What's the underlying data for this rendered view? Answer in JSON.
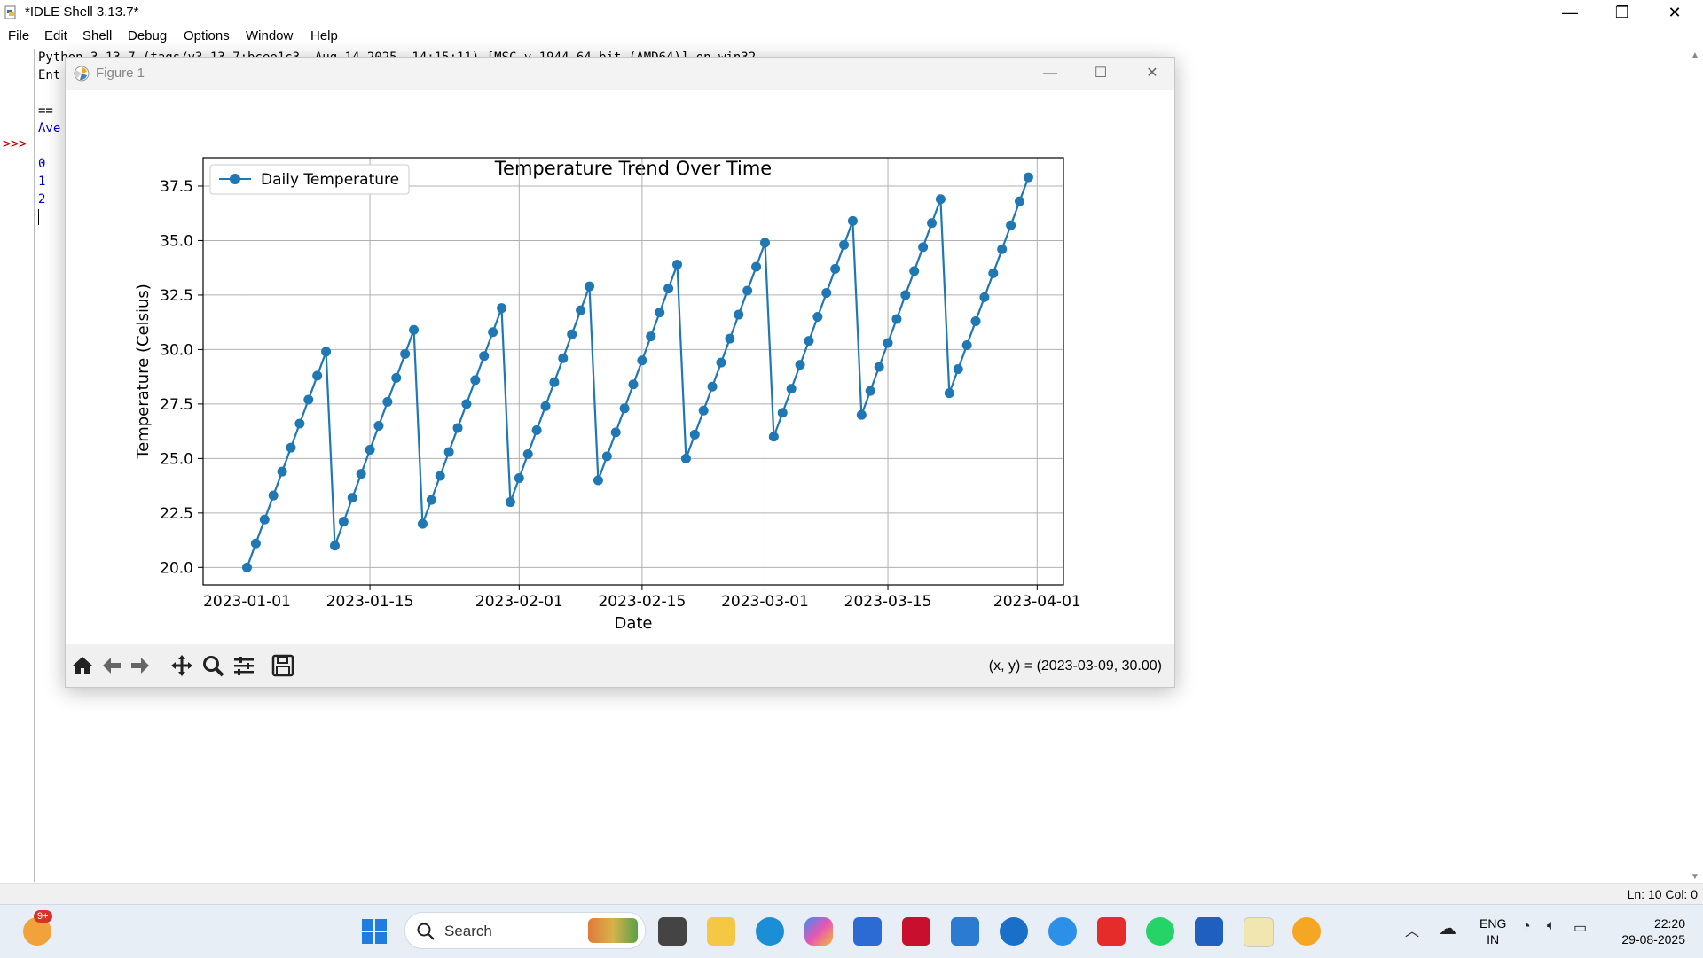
{
  "app": {
    "title": "*IDLE Shell 3.13.7*",
    "controls": {
      "minimize": "—",
      "restore": "❐",
      "close": "✕"
    },
    "menu": [
      "File",
      "Edit",
      "Shell",
      "Debug",
      "Options",
      "Window",
      "Help"
    ],
    "prompt": ">>>",
    "shell_lines": [
      {
        "text": "Python 3.13.7 (tags/v3.13.7:bcee1c3, Aug 14 2025, 14:15:11) [MSC v.1944 64 bit (AMD64)] on win32",
        "color": "#000000"
      },
      {
        "text": "Ent",
        "color": "#000000"
      },
      {
        "text": "",
        "color": "#000000"
      },
      {
        "text": "==",
        "color": "#000000"
      },
      {
        "text": "Ave",
        "color": "#0000cc"
      },
      {
        "text": "",
        "color": "#000000"
      },
      {
        "text": "0",
        "color": "#0000cc"
      },
      {
        "text": "1",
        "color": "#0000cc"
      },
      {
        "text": "2",
        "color": "#0000cc"
      }
    ],
    "status": "Ln: 10   Col: 0"
  },
  "figure": {
    "window_title": "Figure 1",
    "coords_readout": "(x, y) = (2023-03-09, 30.00)",
    "toolbar_icons": [
      "home-icon",
      "back-arrow-icon",
      "forward-arrow-icon",
      "pan-icon",
      "zoom-icon",
      "configure-subplots-icon",
      "save-icon"
    ]
  },
  "chart_data": {
    "type": "line",
    "title": "Temperature Trend Over Time",
    "xlabel": "Date",
    "ylabel": "Temperature (Celsius)",
    "x_start": "2023-01-01",
    "x_ticks": [
      "2023-01-01",
      "2023-01-15",
      "2023-02-01",
      "2023-02-15",
      "2023-03-01",
      "2023-03-15",
      "2023-04-01"
    ],
    "y_ticks": [
      "20.0",
      "22.5",
      "25.0",
      "27.5",
      "30.0",
      "32.5",
      "35.0",
      "37.5"
    ],
    "ylim": [
      19.2,
      38.8
    ],
    "xlim": [
      "2022-12-27",
      "2023-04-04"
    ],
    "grid": true,
    "legend_position": "top-left",
    "series": [
      {
        "name": "Daily Temperature",
        "color": "#1f77b4",
        "marker": "circle",
        "x": [
          "2023-01-01",
          "2023-01-02",
          "2023-01-03",
          "2023-01-04",
          "2023-01-05",
          "2023-01-06",
          "2023-01-07",
          "2023-01-08",
          "2023-01-09",
          "2023-01-10",
          "2023-01-11",
          "2023-01-12",
          "2023-01-13",
          "2023-01-14",
          "2023-01-15",
          "2023-01-16",
          "2023-01-17",
          "2023-01-18",
          "2023-01-19",
          "2023-01-20",
          "2023-01-21",
          "2023-01-22",
          "2023-01-23",
          "2023-01-24",
          "2023-01-25",
          "2023-01-26",
          "2023-01-27",
          "2023-01-28",
          "2023-01-29",
          "2023-01-30",
          "2023-01-31",
          "2023-02-01",
          "2023-02-02",
          "2023-02-03",
          "2023-02-04",
          "2023-02-05",
          "2023-02-06",
          "2023-02-07",
          "2023-02-08",
          "2023-02-09",
          "2023-02-10",
          "2023-02-11",
          "2023-02-12",
          "2023-02-13",
          "2023-02-14",
          "2023-02-15",
          "2023-02-16",
          "2023-02-17",
          "2023-02-18",
          "2023-02-19",
          "2023-02-20",
          "2023-02-21",
          "2023-02-22",
          "2023-02-23",
          "2023-02-24",
          "2023-02-25",
          "2023-02-26",
          "2023-02-27",
          "2023-02-28",
          "2023-03-01",
          "2023-03-02",
          "2023-03-03",
          "2023-03-04",
          "2023-03-05",
          "2023-03-06",
          "2023-03-07",
          "2023-03-08",
          "2023-03-09",
          "2023-03-10",
          "2023-03-11",
          "2023-03-12",
          "2023-03-13",
          "2023-03-14",
          "2023-03-15",
          "2023-03-16",
          "2023-03-17",
          "2023-03-18",
          "2023-03-19",
          "2023-03-20",
          "2023-03-21",
          "2023-03-22",
          "2023-03-23",
          "2023-03-24",
          "2023-03-25",
          "2023-03-26",
          "2023-03-27",
          "2023-03-28",
          "2023-03-29",
          "2023-03-30",
          "2023-03-31"
        ],
        "y": [
          20.0,
          21.1,
          22.2,
          23.3,
          24.4,
          25.5,
          26.6,
          27.7,
          28.8,
          29.9,
          21.0,
          22.1,
          23.2,
          24.3,
          25.4,
          26.5,
          27.6,
          28.7,
          29.8,
          30.9,
          22.0,
          23.1,
          24.2,
          25.3,
          26.4,
          27.5,
          28.6,
          29.7,
          30.8,
          31.9,
          23.0,
          24.1,
          25.2,
          26.3,
          27.4,
          28.5,
          29.6,
          30.7,
          31.8,
          32.9,
          24.0,
          25.1,
          26.2,
          27.3,
          28.4,
          29.5,
          30.6,
          31.7,
          32.8,
          33.9,
          25.0,
          26.1,
          27.2,
          28.3,
          29.4,
          30.5,
          31.6,
          32.7,
          33.8,
          34.9,
          26.0,
          27.1,
          28.2,
          29.3,
          30.4,
          31.5,
          32.6,
          33.7,
          34.8,
          35.9,
          27.0,
          28.1,
          29.2,
          30.3,
          31.4,
          32.5,
          33.6,
          34.7,
          35.8,
          36.9,
          28.0,
          29.1,
          30.2,
          31.3,
          32.4,
          33.5,
          34.6,
          35.7,
          36.8,
          37.9
        ]
      }
    ]
  },
  "taskbar": {
    "search_label": "Search",
    "notification_badge": "9+",
    "apps": [
      "weather-icon",
      "start-icon",
      "widget-icon",
      "task-view-icon",
      "file-explorer-icon",
      "edge-icon",
      "copilot-icon",
      "store-icon",
      "mcafee-icon",
      "news-icon",
      "hp-icon",
      "assistant-icon",
      "wps-icon",
      "whatsapp-icon",
      "word-icon",
      "idle-icon",
      "matplotlib-icon"
    ],
    "lang_top": "ENG",
    "lang_bottom": "IN",
    "time": "22:20",
    "date": "29-08-2025"
  }
}
